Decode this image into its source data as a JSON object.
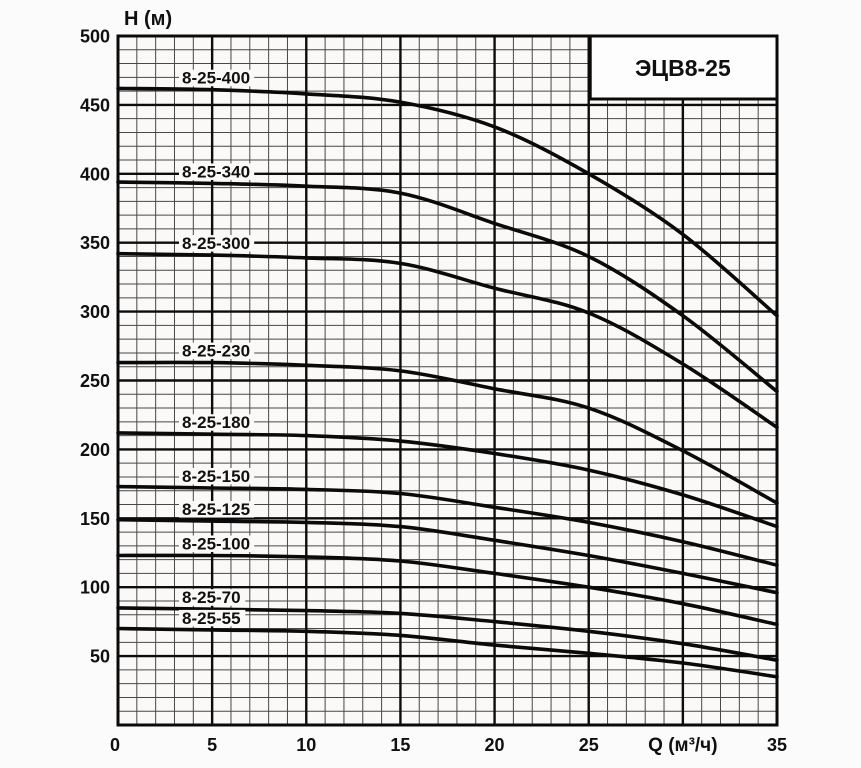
{
  "page": {
    "title_badge": "ЭЦВ8-25"
  },
  "colors": {
    "background": "#fcfbfb",
    "plot_background": "#faf9f8",
    "grid_minor": "#474747",
    "grid_major": "#0c0c0c",
    "border": "#0a0a0a",
    "curve": "#0a0a0a",
    "label_text": "#101010",
    "badge_fill": "#fdfdfd",
    "badge_border": "#0a0a0a"
  },
  "chart_data": {
    "type": "line",
    "title": "ЭЦВ8-25",
    "xlabel": "Q (м³/ч)",
    "ylabel": "H (м)",
    "xlim": [
      0,
      35
    ],
    "ylim": [
      0,
      500
    ],
    "x_major_step": 5,
    "x_minor_step": 1,
    "y_major_step": 50,
    "y_minor_step": 10,
    "grid": "both",
    "legend": "inline-curve-labels",
    "x_ticks": [
      {
        "value": 0,
        "label": "0"
      },
      {
        "value": 5,
        "label": "5"
      },
      {
        "value": 10,
        "label": "10"
      },
      {
        "value": 15,
        "label": "15"
      },
      {
        "value": 20,
        "label": "20"
      },
      {
        "value": 25,
        "label": "25"
      },
      {
        "value": 35,
        "label": "35"
      }
    ],
    "x_unit_label": {
      "text": "Q (м³/ч)",
      "at_value": 30
    },
    "y_ticks": [
      {
        "value": 50,
        "label": "50"
      },
      {
        "value": 100,
        "label": "100"
      },
      {
        "value": 150,
        "label": "150"
      },
      {
        "value": 200,
        "label": "200"
      },
      {
        "value": 250,
        "label": "250"
      },
      {
        "value": 300,
        "label": "300"
      },
      {
        "value": 350,
        "label": "350"
      },
      {
        "value": 400,
        "label": "400"
      },
      {
        "value": 450,
        "label": "450"
      },
      {
        "value": 500,
        "label": "500"
      }
    ],
    "x": [
      0,
      5,
      10,
      15,
      20,
      25,
      30,
      35
    ],
    "series": [
      {
        "name": "8-25-400",
        "values": [
          462,
          461,
          458,
          452,
          434,
          400,
          356,
          297
        ]
      },
      {
        "name": "8-25-340",
        "values": [
          394,
          393,
          391,
          386,
          364,
          340,
          297,
          242
        ]
      },
      {
        "name": "8-25-300",
        "values": [
          342,
          341,
          339,
          335,
          317,
          299,
          262,
          216
        ]
      },
      {
        "name": "8-25-230",
        "values": [
          263,
          263,
          261,
          257,
          244,
          230,
          199,
          161
        ]
      },
      {
        "name": "8-25-180",
        "values": [
          212,
          211,
          210,
          206,
          197,
          185,
          167,
          144
        ]
      },
      {
        "name": "8-25-150",
        "values": [
          173,
          172,
          171,
          168,
          158,
          147,
          133,
          116
        ]
      },
      {
        "name": "8-25-125",
        "values": [
          149,
          148,
          147,
          144,
          134,
          123,
          110,
          96
        ]
      },
      {
        "name": "8-25-100",
        "values": [
          123,
          123,
          122,
          119,
          110,
          100,
          88,
          73
        ]
      },
      {
        "name": "8-25-70",
        "values": [
          85,
          84,
          83,
          81,
          75,
          68,
          59,
          47
        ]
      },
      {
        "name": "8-25-55",
        "values": [
          70,
          69,
          68,
          65,
          58,
          52,
          45,
          35
        ]
      }
    ]
  }
}
